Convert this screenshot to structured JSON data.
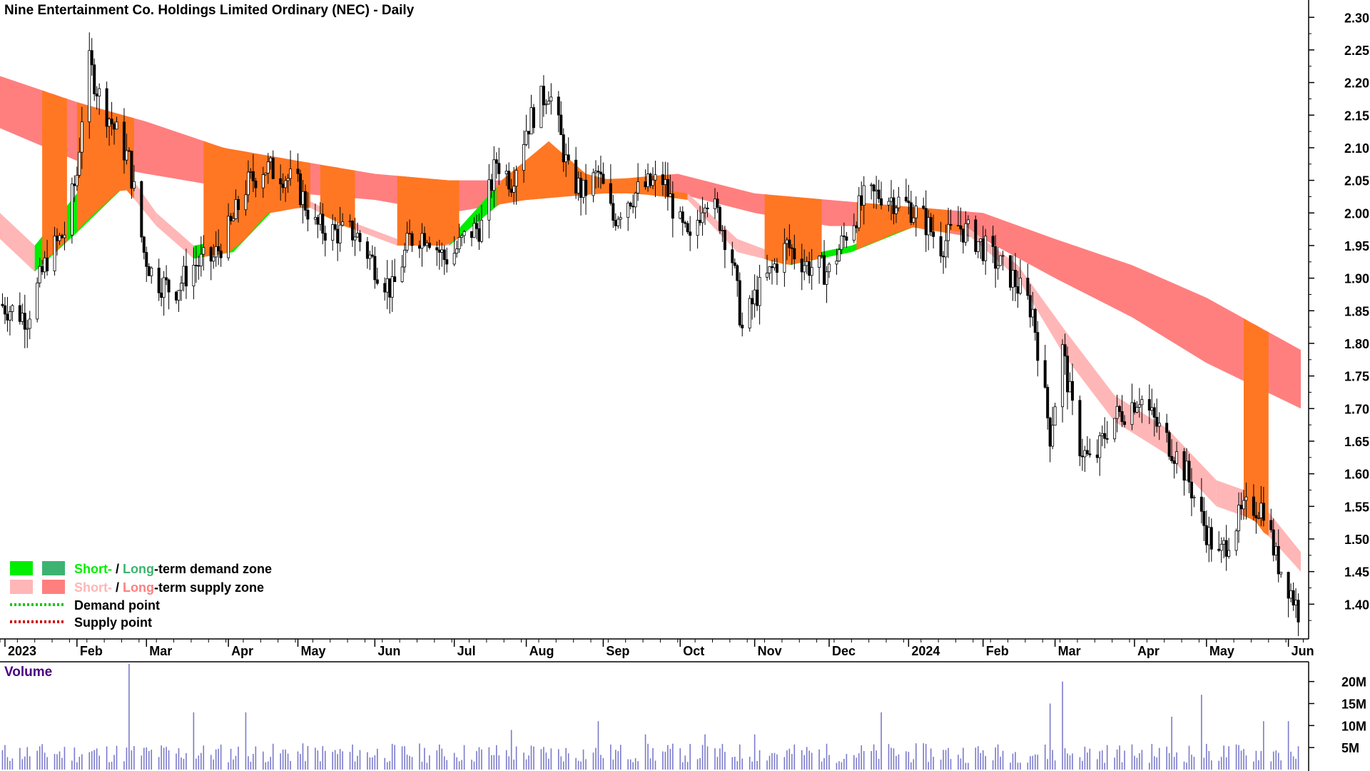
{
  "title": "Nine Entertainment Co. Holdings Limited Ordinary (NEC) - Daily",
  "volume_title": "Volume",
  "legend": {
    "short_word": "Short-",
    "slash": " / ",
    "long_word": "Long",
    "demand_rest": "-term demand zone",
    "supply_rest": "-term supply zone",
    "demand_point": "Demand point",
    "supply_point": "Supply point"
  },
  "colors": {
    "short_demand": "#00ee00",
    "long_demand": "#3cb371",
    "short_supply": "#ffb6b6",
    "long_supply": "#ff7f7f",
    "overlap": "#ff7722",
    "demand_point": "#00cc00",
    "supply_point": "#cc0000",
    "volume_bar": "#7a7acc",
    "volume_title": "#4b0082"
  },
  "chart_data": {
    "type": "candlestick",
    "title": "Nine Entertainment Co. Holdings Limited Ordinary (NEC) - Daily",
    "ylim": [
      1.35,
      2.32
    ],
    "y_ticks": [
      "2.30",
      "2.25",
      "2.20",
      "2.15",
      "2.10",
      "2.05",
      "2.00",
      "1.95",
      "1.90",
      "1.85",
      "1.80",
      "1.75",
      "1.70",
      "1.65",
      "1.60",
      "1.55",
      "1.50",
      "1.45",
      "1.40"
    ],
    "x_tick_labels": [
      "2023",
      "Feb",
      "Mar",
      "Apr",
      "May",
      "Jun",
      "Jul",
      "Aug",
      "Sep",
      "Oct",
      "Nov",
      "Dec",
      "2024",
      "Feb",
      "Mar",
      "Apr",
      "May",
      "Jun"
    ],
    "x_range": [
      "2023-01-01",
      "2024-06-10"
    ],
    "x_tick_dates": [
      "2023-01-03",
      "2023-02-01",
      "2023-03-01",
      "2023-04-03",
      "2023-05-01",
      "2023-06-01",
      "2023-07-03",
      "2023-08-01",
      "2023-09-01",
      "2023-10-02",
      "2023-11-01",
      "2023-12-01",
      "2024-01-02",
      "2024-02-01",
      "2024-03-01",
      "2024-04-02",
      "2024-05-01",
      "2024-06-03"
    ],
    "close_path": [
      [
        "2023-01-01",
        1.86
      ],
      [
        "2023-01-12",
        1.84
      ],
      [
        "2023-01-20",
        1.93
      ],
      [
        "2023-01-27",
        1.97
      ],
      [
        "2023-02-01",
        2.06
      ],
      [
        "2023-02-05",
        2.24
      ],
      [
        "2023-02-10",
        2.18
      ],
      [
        "2023-02-16",
        2.13
      ],
      [
        "2023-02-22",
        2.08
      ],
      [
        "2023-02-28",
        1.94
      ],
      [
        "2023-03-04",
        1.9
      ],
      [
        "2023-03-12",
        1.88
      ],
      [
        "2023-03-20",
        1.92
      ],
      [
        "2023-03-28",
        1.93
      ],
      [
        "2023-04-04",
        1.98
      ],
      [
        "2023-04-10",
        2.04
      ],
      [
        "2023-04-17",
        2.07
      ],
      [
        "2023-04-25",
        2.06
      ],
      [
        "2023-05-01",
        2.04
      ],
      [
        "2023-05-08",
        1.98
      ],
      [
        "2023-05-16",
        1.97
      ],
      [
        "2023-05-24",
        1.97
      ],
      [
        "2023-06-01",
        1.92
      ],
      [
        "2023-06-08",
        1.88
      ],
      [
        "2023-06-15",
        1.96
      ],
      [
        "2023-06-22",
        1.97
      ],
      [
        "2023-06-29",
        1.93
      ],
      [
        "2023-07-03",
        1.94
      ],
      [
        "2023-07-09",
        1.97
      ],
      [
        "2023-07-14",
        1.98
      ],
      [
        "2023-07-20",
        2.08
      ],
      [
        "2023-07-26",
        2.05
      ],
      [
        "2023-08-01",
        2.13
      ],
      [
        "2023-08-05",
        2.16
      ],
      [
        "2023-08-10",
        2.19
      ],
      [
        "2023-08-14",
        2.13
      ],
      [
        "2023-08-18",
        2.06
      ],
      [
        "2023-08-24",
        2.03
      ],
      [
        "2023-08-30",
        2.06
      ],
      [
        "2023-09-05",
        1.99
      ],
      [
        "2023-09-10",
        2.02
      ],
      [
        "2023-09-18",
        2.04
      ],
      [
        "2023-09-25",
        2.05
      ],
      [
        "2023-10-02",
        1.98
      ],
      [
        "2023-10-06",
        1.95
      ],
      [
        "2023-10-12",
        2.03
      ],
      [
        "2023-10-18",
        1.99
      ],
      [
        "2023-10-23",
        1.93
      ],
      [
        "2023-10-27",
        1.82
      ],
      [
        "2023-11-01",
        1.87
      ],
      [
        "2023-11-06",
        1.9
      ],
      [
        "2023-11-14",
        1.95
      ],
      [
        "2023-11-22",
        1.92
      ],
      [
        "2023-12-01",
        1.91
      ],
      [
        "2023-12-08",
        1.97
      ],
      [
        "2023-12-15",
        2.02
      ],
      [
        "2023-12-22",
        2.03
      ],
      [
        "2024-01-02",
        2.01
      ],
      [
        "2024-01-08",
        1.99
      ],
      [
        "2024-01-15",
        1.95
      ],
      [
        "2024-01-22",
        1.98
      ],
      [
        "2024-01-29",
        1.96
      ],
      [
        "2024-02-05",
        1.93
      ],
      [
        "2024-02-13",
        1.9
      ],
      [
        "2024-02-21",
        1.85
      ],
      [
        "2024-02-28",
        1.66
      ],
      [
        "2024-03-04",
        1.79
      ],
      [
        "2024-03-10",
        1.65
      ],
      [
        "2024-03-16",
        1.61
      ],
      [
        "2024-03-23",
        1.68
      ],
      [
        "2024-03-30",
        1.7
      ],
      [
        "2024-04-04",
        1.72
      ],
      [
        "2024-04-10",
        1.68
      ],
      [
        "2024-04-17",
        1.64
      ],
      [
        "2024-04-23",
        1.6
      ],
      [
        "2024-04-29",
        1.53
      ],
      [
        "2024-05-06",
        1.47
      ],
      [
        "2024-05-12",
        1.52
      ],
      [
        "2024-05-18",
        1.55
      ],
      [
        "2024-05-24",
        1.55
      ],
      [
        "2024-05-29",
        1.47
      ],
      [
        "2024-06-03",
        1.43
      ],
      [
        "2024-06-08",
        1.38
      ]
    ],
    "long_term_zone": [
      [
        "2023-01-01",
        2.21,
        2.13
      ],
      [
        "2023-02-01",
        2.17,
        2.08
      ],
      [
        "2023-03-01",
        2.14,
        2.06
      ],
      [
        "2023-04-01",
        2.1,
        2.04
      ],
      [
        "2023-05-01",
        2.08,
        2.03
      ],
      [
        "2023-06-01",
        2.06,
        2.02
      ],
      [
        "2023-07-01",
        2.05,
        2.0
      ],
      [
        "2023-08-01",
        2.05,
        2.02
      ],
      [
        "2023-09-01",
        2.05,
        2.03
      ],
      [
        "2023-10-01",
        2.06,
        2.03
      ],
      [
        "2023-11-01",
        2.03,
        2.0
      ],
      [
        "2023-12-01",
        2.02,
        1.98
      ],
      [
        "2024-01-01",
        2.01,
        1.98
      ],
      [
        "2024-02-01",
        2.0,
        1.96
      ],
      [
        "2024-03-01",
        1.96,
        1.9
      ],
      [
        "2024-04-01",
        1.92,
        1.84
      ],
      [
        "2024-05-01",
        1.87,
        1.77
      ],
      [
        "2024-06-08",
        1.79,
        1.7
      ]
    ],
    "short_term_zone": [
      [
        "2023-01-01",
        2.0,
        1.96
      ],
      [
        "2023-01-15",
        1.95,
        1.91
      ],
      [
        "2023-02-01",
        2.03,
        1.97
      ],
      [
        "2023-02-20",
        2.07,
        2.04
      ],
      [
        "2023-03-05",
        2.0,
        1.98
      ],
      [
        "2023-03-20",
        1.95,
        1.93
      ],
      [
        "2023-04-05",
        1.96,
        1.94
      ],
      [
        "2023-04-20",
        2.02,
        2.0
      ],
      [
        "2023-05-05",
        2.02,
        2.01
      ],
      [
        "2023-05-20",
        1.99,
        1.98
      ],
      [
        "2023-06-10",
        1.96,
        1.95
      ],
      [
        "2023-07-01",
        1.96,
        1.95
      ],
      [
        "2023-07-20",
        2.04,
        2.01
      ],
      [
        "2023-08-10",
        2.11,
        2.06
      ],
      [
        "2023-08-25",
        2.06,
        2.04
      ],
      [
        "2023-09-15",
        2.04,
        2.03
      ],
      [
        "2023-10-05",
        2.03,
        2.02
      ],
      [
        "2023-10-25",
        1.96,
        1.94
      ],
      [
        "2023-11-15",
        1.93,
        1.92
      ],
      [
        "2023-12-10",
        1.95,
        1.94
      ],
      [
        "2024-01-05",
        1.99,
        1.98
      ],
      [
        "2024-01-25",
        1.98,
        1.97
      ],
      [
        "2024-02-15",
        1.92,
        1.9
      ],
      [
        "2024-03-05",
        1.82,
        1.78
      ],
      [
        "2024-03-25",
        1.72,
        1.68
      ],
      [
        "2024-04-15",
        1.67,
        1.63
      ],
      [
        "2024-05-05",
        1.59,
        1.55
      ],
      [
        "2024-05-20",
        1.57,
        1.53
      ],
      [
        "2024-06-08",
        1.48,
        1.45
      ]
    ],
    "overlap_periods": [
      [
        "2023-01-18",
        "2023-01-28"
      ],
      [
        "2023-02-01",
        "2023-02-24"
      ],
      [
        "2023-03-24",
        "2023-05-06"
      ],
      [
        "2023-05-10",
        "2023-05-24"
      ],
      [
        "2023-06-10",
        "2023-07-05"
      ],
      [
        "2023-07-22",
        "2023-09-28"
      ],
      [
        "2023-11-05",
        "2023-11-28"
      ],
      [
        "2023-12-12",
        "2024-01-18"
      ],
      [
        "2024-05-16",
        "2024-05-26"
      ]
    ],
    "volume": {
      "label": "Volume",
      "y_ticks": [
        "20M",
        "15M",
        "10M",
        "5M"
      ],
      "ylim": [
        0,
        24000000
      ],
      "spikes": [
        [
          "2023-02-22",
          24000000
        ],
        [
          "2023-03-04",
          13000000
        ],
        [
          "2023-03-20",
          13000000
        ],
        [
          "2023-04-10",
          13000000
        ],
        [
          "2023-07-26",
          9000000
        ],
        [
          "2023-08-30",
          11000000
        ],
        [
          "2023-09-18",
          8000000
        ],
        [
          "2023-10-12",
          8000000
        ],
        [
          "2023-11-01",
          8000000
        ],
        [
          "2023-12-22",
          13000000
        ],
        [
          "2024-02-28",
          15000000
        ],
        [
          "2024-03-04",
          20000000
        ],
        [
          "2024-03-23",
          13000000
        ],
        [
          "2024-04-17",
          12000000
        ],
        [
          "2024-04-29",
          17000000
        ],
        [
          "2024-05-24",
          11000000
        ],
        [
          "2024-06-03",
          11000000
        ]
      ]
    },
    "legend": [
      "Short- / Long-term demand zone",
      "Short- / Long-term supply zone",
      "Demand point",
      "Supply point"
    ]
  }
}
